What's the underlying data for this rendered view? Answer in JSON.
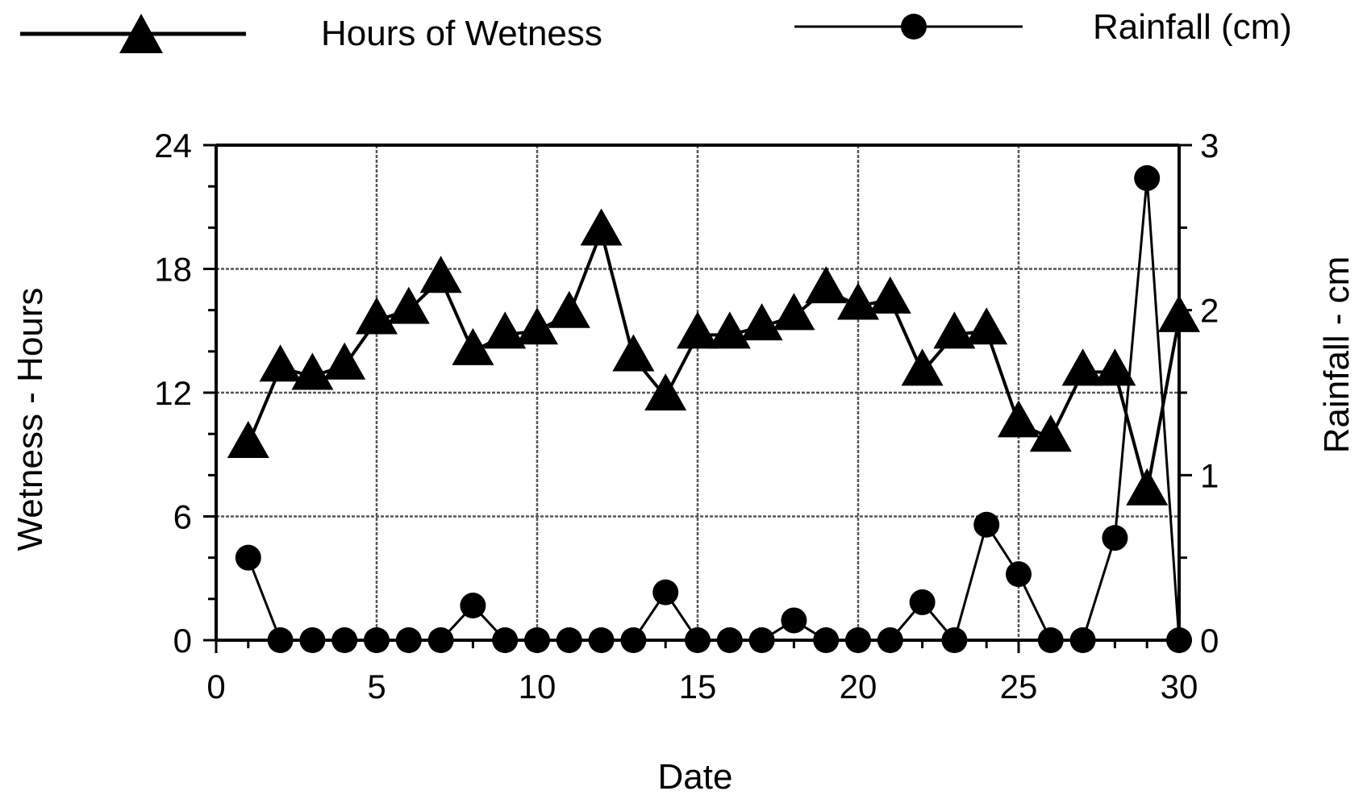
{
  "chart_data": {
    "type": "line",
    "x": [
      1,
      2,
      3,
      4,
      5,
      6,
      7,
      8,
      9,
      10,
      11,
      12,
      13,
      14,
      15,
      16,
      17,
      18,
      19,
      20,
      21,
      22,
      23,
      24,
      25,
      26,
      27,
      28,
      29,
      30
    ],
    "series": [
      {
        "name": "Hours of Wetness",
        "axis": "left",
        "marker": "triangle",
        "values": [
          9.5,
          13.2,
          12.8,
          13.3,
          15.5,
          16.0,
          17.5,
          14.0,
          14.8,
          15.0,
          15.8,
          19.8,
          13.7,
          11.8,
          14.8,
          14.8,
          15.2,
          15.7,
          17.0,
          16.2,
          16.5,
          13.0,
          14.8,
          15.0,
          10.5,
          9.8,
          13.0,
          13.0,
          7.2,
          15.6
        ]
      },
      {
        "name": "Rainfall (cm)",
        "axis": "right",
        "marker": "circle",
        "values": [
          0.5,
          0.0,
          0.0,
          0.0,
          0.0,
          0.0,
          0.0,
          0.21,
          0.0,
          0.0,
          0.0,
          0.0,
          0.0,
          0.29,
          0.0,
          0.0,
          0.0,
          0.12,
          0.0,
          0.0,
          0.0,
          0.23,
          0.0,
          0.7,
          0.4,
          0.0,
          0.0,
          0.62,
          2.8,
          0.0
        ]
      }
    ],
    "xlabel": "Date",
    "ylabel": "Wetness - Hours",
    "y2label": "Rainfall - cm",
    "xlim": [
      0,
      30
    ],
    "ylim": [
      0,
      24
    ],
    "y2lim": [
      0,
      3
    ],
    "xticks": [
      "0",
      "5",
      "10",
      "15",
      "20",
      "25",
      "30"
    ],
    "yticks": [
      "0",
      "6",
      "12",
      "18",
      "24"
    ],
    "y2ticks": [
      "0",
      "1",
      "2",
      "3"
    ],
    "grid": true,
    "legend_position": "top"
  },
  "colors": {
    "ink": "#000000",
    "grid": "#555555",
    "background": "#ffffff"
  }
}
